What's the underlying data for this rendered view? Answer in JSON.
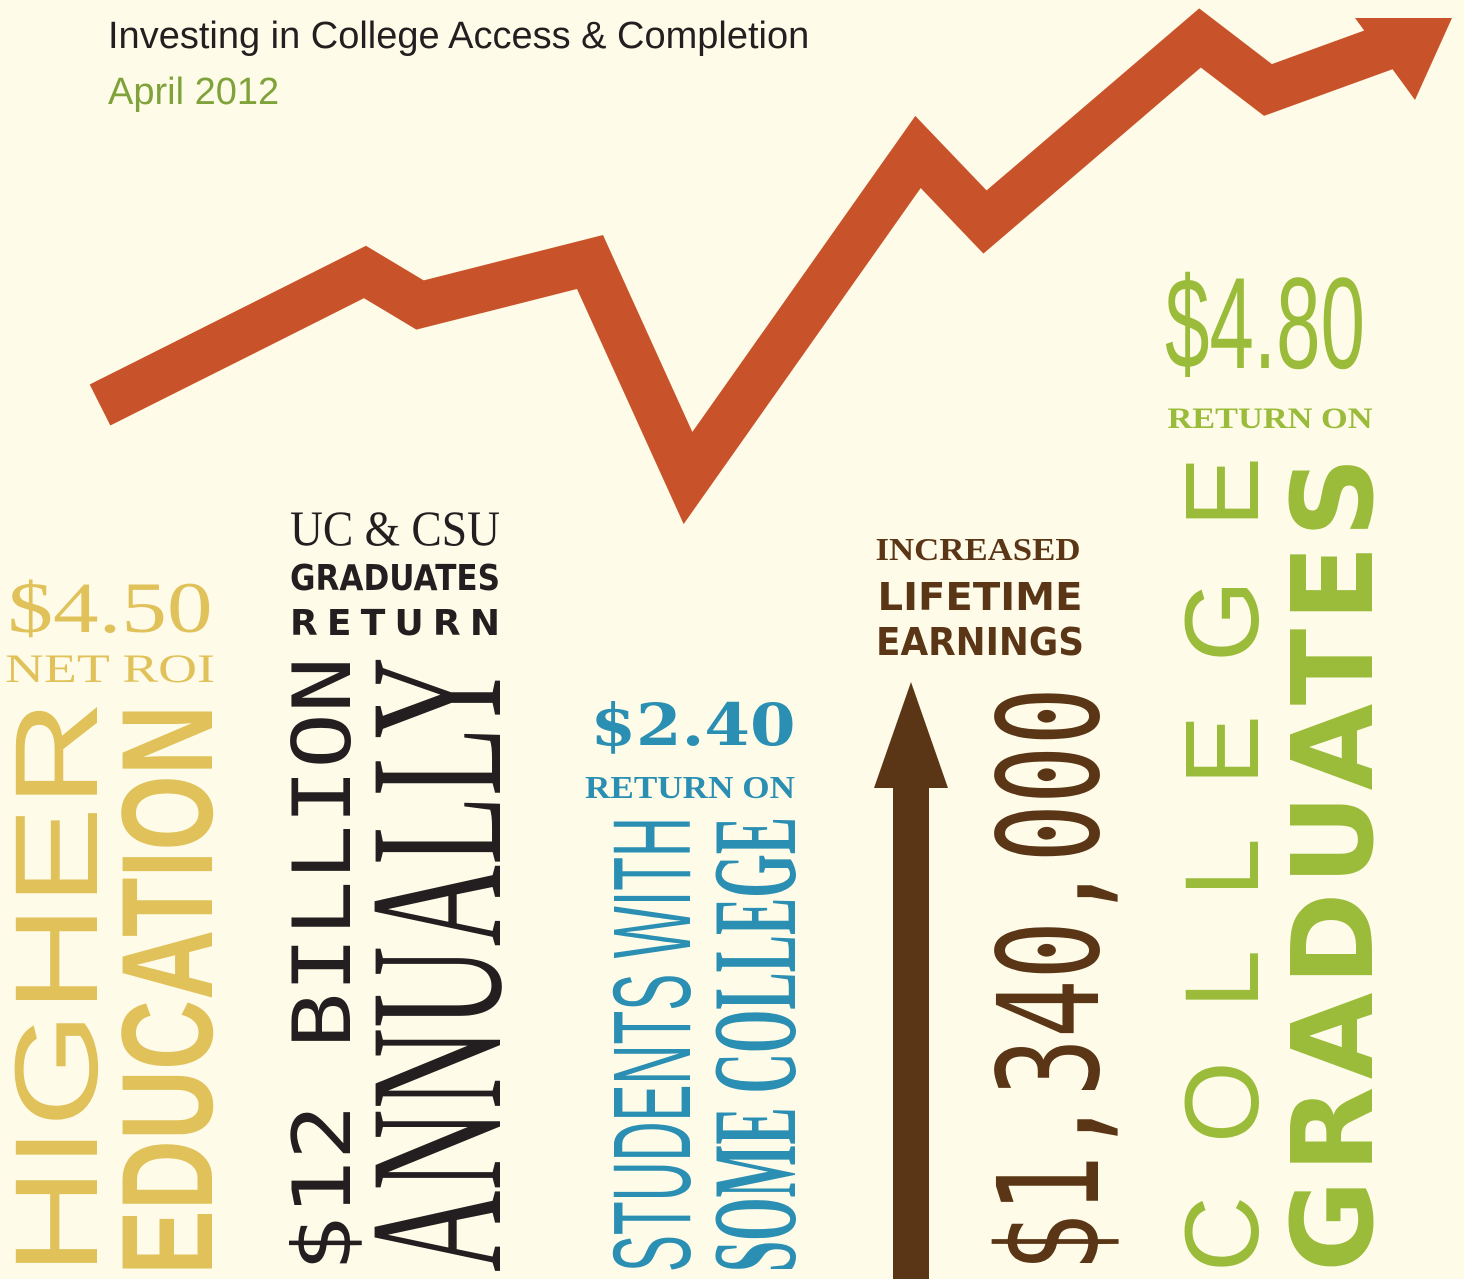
{
  "header": {
    "title": "Investing in College Access & Completion",
    "date": "April 2012"
  },
  "blocks": [
    {
      "figure": "$4.50",
      "caption": "NET ROI",
      "line1": "HIGHER",
      "line2": "EDUCATION"
    },
    {
      "lead": "UC & CSU",
      "lead2": "GRADUATES",
      "lead3": "RETURN",
      "line1": "$12 BILLION",
      "line2": "ANNUALLY"
    },
    {
      "figure": "$2.40",
      "caption": "RETURN ON",
      "line1": "STUDENTS WITH",
      "line2": "SOME COLLEGE"
    },
    {
      "lead": "INCREASED",
      "lead2": "LIFETIME",
      "lead3": "EARNINGS",
      "line1": "$1,340,000"
    },
    {
      "figure": "$4.80",
      "caption": "RETURN ON",
      "line1": "COLLEGE",
      "line2": "GRADUATES"
    }
  ]
}
